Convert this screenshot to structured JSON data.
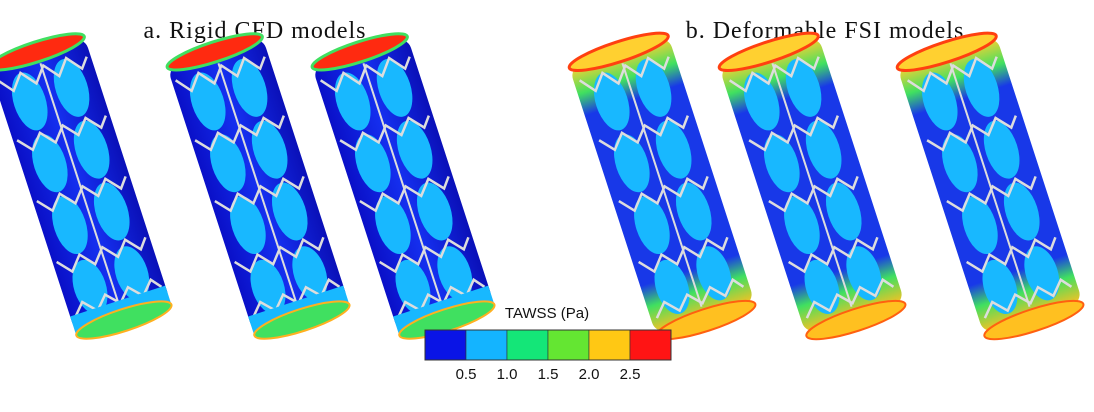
{
  "panels": [
    {
      "title": "a. Rigid CFD models"
    },
    {
      "title": "b. Deformable FSI models"
    }
  ],
  "legend": {
    "title": "TAWSS (Pa)",
    "ticks": [
      "0.5",
      "1.0",
      "1.5",
      "2.0",
      "2.5"
    ],
    "colors": [
      "#0a14e6",
      "#14b4ff",
      "#14e678",
      "#64e632",
      "#ffc814",
      "#ff1414"
    ]
  }
}
